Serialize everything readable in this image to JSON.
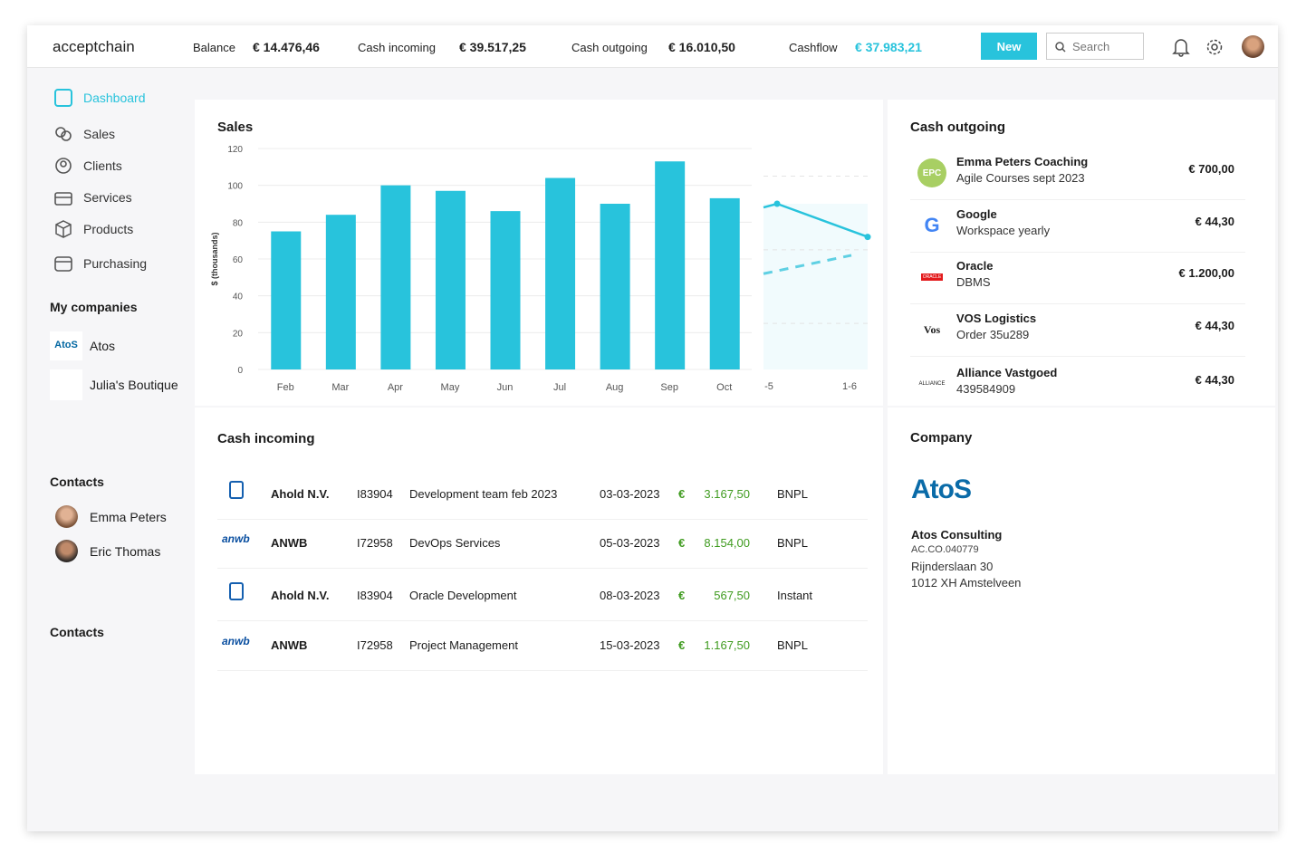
{
  "header": {
    "logo": "acceptchain",
    "stats": [
      {
        "label": "Balance",
        "value": "€ 14.476,46"
      },
      {
        "label": "Cash incoming",
        "value": "€ 39.517,25"
      },
      {
        "label": "Cash outgoing",
        "value": "€ 16.010,50"
      },
      {
        "label": "Cashflow",
        "value": "€ 37.983,21"
      }
    ],
    "new_label": "New",
    "search_placeholder": "Search",
    "accent": "#28c3dc"
  },
  "sidebar": {
    "items": [
      {
        "label": "Dashboard",
        "icon": "dashboard-icon"
      },
      {
        "label": "Sales",
        "icon": "sales-icon"
      },
      {
        "label": "Clients",
        "icon": "user-circle-icon"
      },
      {
        "label": "Services",
        "icon": "briefcase-icon"
      },
      {
        "label": "Products",
        "icon": "box-icon"
      },
      {
        "label": "Purchasing",
        "icon": "wallet-icon"
      }
    ],
    "companies_title": "My companies",
    "companies": [
      {
        "name": "Atos",
        "logo": "AtoS"
      },
      {
        "name": "Julia's Boutique"
      }
    ],
    "contacts_title": "Contacts",
    "contacts": [
      "Emma Peters",
      "Eric Thomas"
    ],
    "contacts_title2": "Contacts"
  },
  "sales": {
    "title": "Sales"
  },
  "chart_data": {
    "type": "bar",
    "title": "Sales",
    "ylabel": "$ (thousands)",
    "ylim": [
      0,
      120
    ],
    "yticks": [
      "0",
      "20",
      "40",
      "60",
      "80",
      "100",
      "120"
    ],
    "categories": [
      "Feb",
      "Mar",
      "Apr",
      "May",
      "Jun",
      "Jul",
      "Aug",
      "Sep",
      "Oct"
    ],
    "values": [
      75,
      84,
      100,
      97,
      86,
      104,
      90,
      113,
      93
    ],
    "line": {
      "categories": [
        "-5",
        "1-6"
      ],
      "values": [
        90,
        72
      ],
      "dashed_values": [
        52,
        62
      ]
    },
    "grid": true,
    "color": "#28c3dc"
  },
  "outgoing": {
    "title": "Cash outgoing",
    "items": [
      {
        "name": "Emma Peters Coaching",
        "sub": "Agile Courses sept 2023",
        "amount": "€ 700,00",
        "logo": "EPC"
      },
      {
        "name": "Google",
        "sub": "Workspace yearly",
        "amount": "€ 44,30",
        "logo": "G"
      },
      {
        "name": "Oracle",
        "sub": "DBMS",
        "amount": "€ 1.200,00",
        "logo": "ORACLE"
      },
      {
        "name": "VOS Logistics",
        "sub": "Order 35u289",
        "amount": "€ 44,30",
        "logo": "Vos"
      },
      {
        "name": "Alliance Vastgoed",
        "sub": "439584909",
        "amount": "€ 44,30",
        "logo": "ALLIANCE"
      }
    ]
  },
  "incoming": {
    "title": "Cash incoming",
    "currency": "€",
    "rows": [
      {
        "company": "Ahold N.V.",
        "id": "I83904",
        "desc": "Development team feb 2023",
        "date": "03-03-2023",
        "amount": "3.167,50",
        "type": "BNPL",
        "logo": "ahold"
      },
      {
        "company": "ANWB",
        "id": "I72958",
        "desc": "DevOps Services",
        "date": "05-03-2023",
        "amount": "8.154,00",
        "type": "BNPL",
        "logo": "anwb"
      },
      {
        "company": "Ahold N.V.",
        "id": "I83904",
        "desc": "Oracle Development",
        "date": "08-03-2023",
        "amount": "567,50",
        "type": "Instant",
        "logo": "ahold"
      },
      {
        "company": "ANWB",
        "id": "I72958",
        "desc": "Project Management",
        "date": "15-03-2023",
        "amount": "1.167,50",
        "type": "BNPL",
        "logo": "anwb"
      }
    ]
  },
  "company": {
    "title": "Company",
    "logo": "AtoS",
    "name": "Atos Consulting",
    "code": "AC.CO.040779",
    "street": "Rijnderslaan 30",
    "city": "1012 XH Amstelveen"
  }
}
